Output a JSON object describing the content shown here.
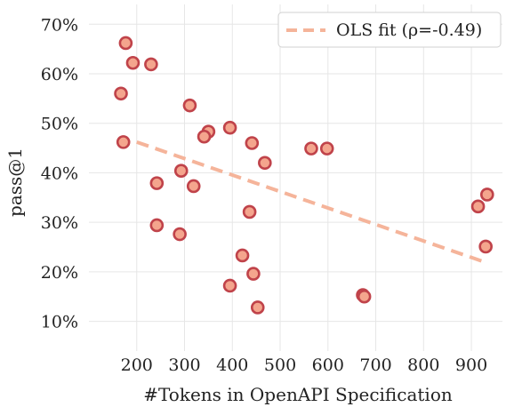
{
  "chart_data": {
    "type": "scatter",
    "xlabel": "#Tokens in OpenAPI Specification",
    "ylabel": "pass@1",
    "xlim": [
      100,
      965
    ],
    "ylim": [
      4,
      74
    ],
    "xticks": [
      200,
      300,
      400,
      500,
      600,
      700,
      800,
      900
    ],
    "yticks": [
      10,
      20,
      30,
      40,
      50,
      60,
      70
    ],
    "ytick_labels": [
      "10%",
      "20%",
      "30%",
      "40%",
      "50%",
      "60%",
      "70%"
    ],
    "grid": true,
    "legend": {
      "placement": "top-right",
      "entries": [
        "OLS fit (ρ=-0.49)"
      ]
    },
    "series": [
      {
        "type": "scatter",
        "points": [
          {
            "x": 177,
            "y": 66.2
          },
          {
            "x": 192,
            "y": 62.2
          },
          {
            "x": 230,
            "y": 61.9
          },
          {
            "x": 167,
            "y": 56.0
          },
          {
            "x": 311,
            "y": 53.6
          },
          {
            "x": 395,
            "y": 49.1
          },
          {
            "x": 350,
            "y": 48.3
          },
          {
            "x": 341,
            "y": 47.3
          },
          {
            "x": 172,
            "y": 46.2
          },
          {
            "x": 441,
            "y": 46.0
          },
          {
            "x": 565,
            "y": 44.9
          },
          {
            "x": 598,
            "y": 44.9
          },
          {
            "x": 468,
            "y": 42.0
          },
          {
            "x": 293,
            "y": 40.4
          },
          {
            "x": 242,
            "y": 37.9
          },
          {
            "x": 319,
            "y": 37.3
          },
          {
            "x": 436,
            "y": 32.1
          },
          {
            "x": 242,
            "y": 29.4
          },
          {
            "x": 290,
            "y": 27.6
          },
          {
            "x": 421,
            "y": 23.3
          },
          {
            "x": 444,
            "y": 19.6
          },
          {
            "x": 395,
            "y": 17.2
          },
          {
            "x": 453,
            "y": 12.8
          },
          {
            "x": 673,
            "y": 15.3
          },
          {
            "x": 676,
            "y": 15.0
          },
          {
            "x": 914,
            "y": 33.2
          },
          {
            "x": 933,
            "y": 35.6
          },
          {
            "x": 930,
            "y": 25.1
          }
        ],
        "color": "#c0434a",
        "fill": "#f4a58d"
      },
      {
        "type": "line",
        "name": "OLS fit (ρ=-0.49)",
        "style": "dashed",
        "x": [
          200,
          930
        ],
        "y": [
          46.2,
          21.9
        ],
        "color": "#f5b49a"
      }
    ]
  }
}
